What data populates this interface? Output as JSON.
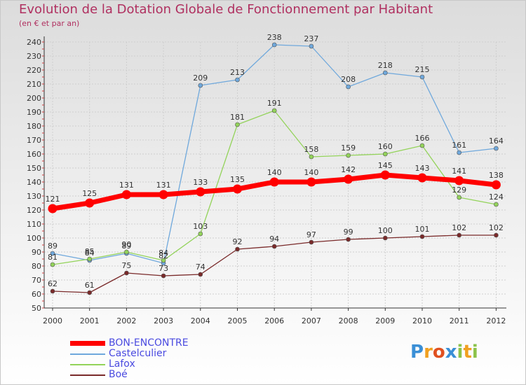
{
  "chart_data": {
    "type": "line",
    "title": "Evolution de la Dotation Globale de Fonctionnement par Habitant",
    "subtitle": "(en € et par an)",
    "xlabel": "",
    "ylabel": "",
    "categories": [
      "2000",
      "2001",
      "2002",
      "2003",
      "2004",
      "2005",
      "2006",
      "2007",
      "2008",
      "2009",
      "2010",
      "2011",
      "2012"
    ],
    "ylim": [
      50,
      240
    ],
    "yticks": [
      50,
      60,
      70,
      80,
      90,
      100,
      110,
      120,
      130,
      140,
      150,
      160,
      170,
      180,
      190,
      200,
      210,
      220,
      230,
      240
    ],
    "grid": true,
    "legend_position": "bottom-left",
    "series": [
      {
        "name": "BON-ENCONTRE",
        "color": "#ff0000",
        "values": [
          121,
          125,
          131,
          131,
          133,
          135,
          140,
          140,
          142,
          145,
          143,
          141,
          138
        ]
      },
      {
        "name": "Castelculier",
        "color": "#6fa8dc",
        "values": [
          89,
          84,
          89,
          82,
          209,
          213,
          238,
          237,
          208,
          218,
          215,
          161,
          164
        ]
      },
      {
        "name": "Lafox",
        "color": "#93d35a",
        "values": [
          81,
          85,
          90,
          84,
          103,
          181,
          191,
          158,
          159,
          160,
          166,
          129,
          124
        ]
      },
      {
        "name": "Boé",
        "color": "#7a2a2a",
        "values": [
          62,
          61,
          75,
          73,
          74,
          92,
          94,
          97,
          99,
          100,
          101,
          102,
          102
        ]
      }
    ]
  },
  "logo": {
    "letters": [
      {
        "char": "P",
        "color": "#3a8fd6"
      },
      {
        "char": "r",
        "color": "#f0a020"
      },
      {
        "char": "o",
        "color": "#e05020"
      },
      {
        "char": "x",
        "color": "#3a8fd6"
      },
      {
        "char": "i",
        "color": "#8bc34a"
      },
      {
        "char": "t",
        "color": "#f0a020"
      },
      {
        "char": "i",
        "color": "#8bc34a"
      }
    ]
  },
  "colors": {
    "title": "#b03060",
    "axis": "#333333",
    "grid": "#cfcfcf",
    "legend_text": "#4a4ae0",
    "label_text": "#333333"
  }
}
